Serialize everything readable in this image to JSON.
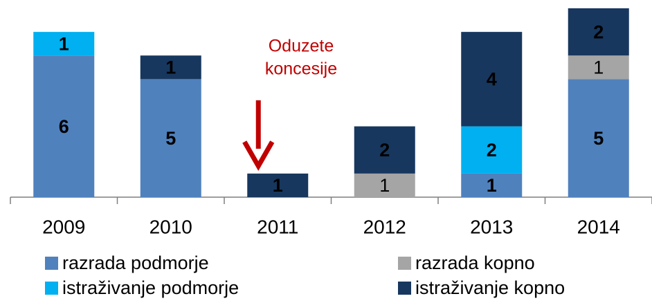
{
  "chart_data": {
    "type": "stacked-bar",
    "categories": [
      "2009",
      "2010",
      "2011",
      "2012",
      "2013",
      "2014"
    ],
    "series": [
      {
        "name": "razrada podmorje",
        "color": "#4f81bd",
        "values": [
          6,
          5,
          0,
          0,
          1,
          5
        ]
      },
      {
        "name": "razrada kopno",
        "color": "#a5a5a5",
        "values": [
          0,
          0,
          0,
          1,
          0,
          1
        ]
      },
      {
        "name": "istraživanje podmorje",
        "color": "#00b0f0",
        "values": [
          1,
          0,
          0,
          0,
          2,
          0
        ]
      },
      {
        "name": "istraživanje kopno",
        "color": "#17375e",
        "values": [
          0,
          1,
          1,
          2,
          4,
          2
        ]
      }
    ],
    "ylim": [
      0,
      8
    ],
    "annotation": [
      "Oduzete",
      "koncesije"
    ],
    "annotation_color": "#c00000"
  }
}
